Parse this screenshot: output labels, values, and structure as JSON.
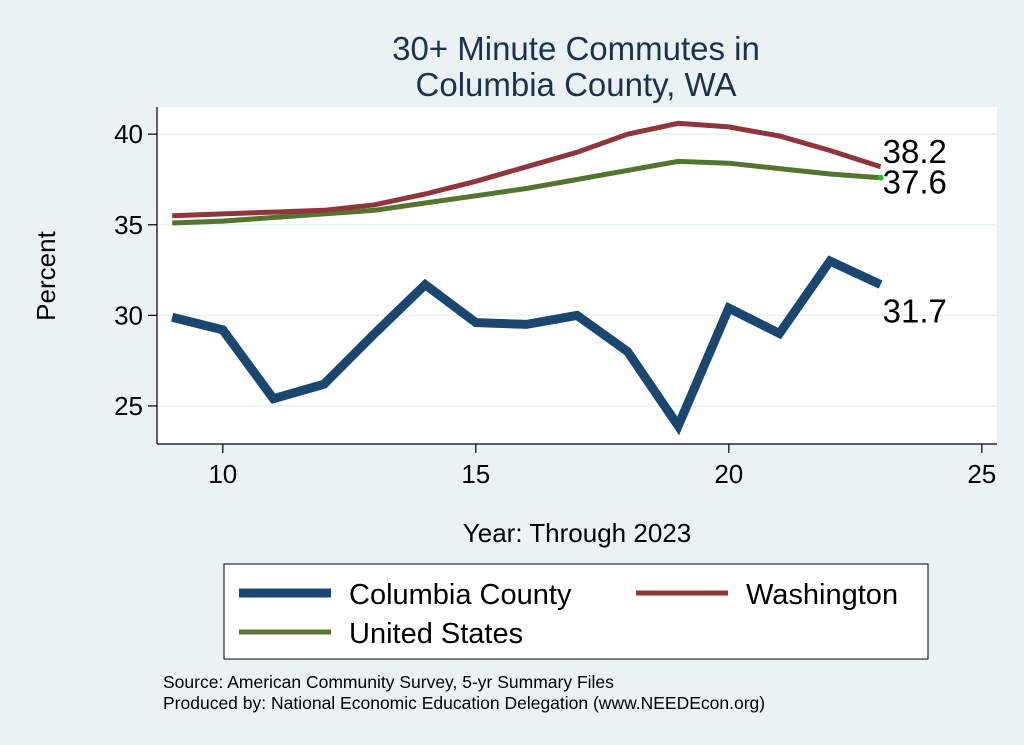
{
  "chart_data": {
    "type": "line",
    "title_lines": [
      "30+ Minute Commutes in",
      "Columbia County, WA"
    ],
    "xlabel": "Year: Through 2023",
    "ylabel": "Percent",
    "xlim": [
      8.7,
      25.3
    ],
    "ylim": [
      22.9,
      41.5
    ],
    "xticks": [
      10,
      15,
      20,
      25
    ],
    "yticks": [
      25,
      30,
      35,
      40
    ],
    "grid": true,
    "legend_position": "bottom",
    "series": [
      {
        "name": "Columbia County",
        "color": "#1a476f",
        "x": [
          9,
          10,
          11,
          12,
          13,
          14,
          15,
          16,
          17,
          18,
          19,
          20,
          21,
          22,
          23
        ],
        "values": [
          29.9,
          29.2,
          25.4,
          26.2,
          29.0,
          31.7,
          29.6,
          29.5,
          30.0,
          28.0,
          23.9,
          30.4,
          29.0,
          33.0,
          31.7
        ],
        "end_label": "31.7"
      },
      {
        "name": "Washington",
        "color": "#90353b",
        "x": [
          9,
          10,
          11,
          12,
          13,
          14,
          15,
          16,
          17,
          18,
          19,
          20,
          21,
          22,
          23
        ],
        "values": [
          35.5,
          35.6,
          35.7,
          35.8,
          36.1,
          36.7,
          37.4,
          38.2,
          39.0,
          40.0,
          40.6,
          40.4,
          39.9,
          39.1,
          38.2
        ],
        "end_label": "38.2"
      },
      {
        "name": "United States",
        "color": "#55752f",
        "x": [
          9,
          10,
          11,
          12,
          13,
          14,
          15,
          16,
          17,
          18,
          19,
          20,
          21,
          22,
          23
        ],
        "values": [
          35.1,
          35.2,
          35.4,
          35.6,
          35.8,
          36.2,
          36.6,
          37.0,
          37.5,
          38.0,
          38.5,
          38.4,
          38.1,
          37.8,
          37.6
        ],
        "end_label": "37.6"
      }
    ]
  },
  "source_lines": [
    "Source: American Community Survey, 5-yr Summary Files",
    "Produced by: National Economic Education Delegation (www.NEEDEcon.org)"
  ]
}
